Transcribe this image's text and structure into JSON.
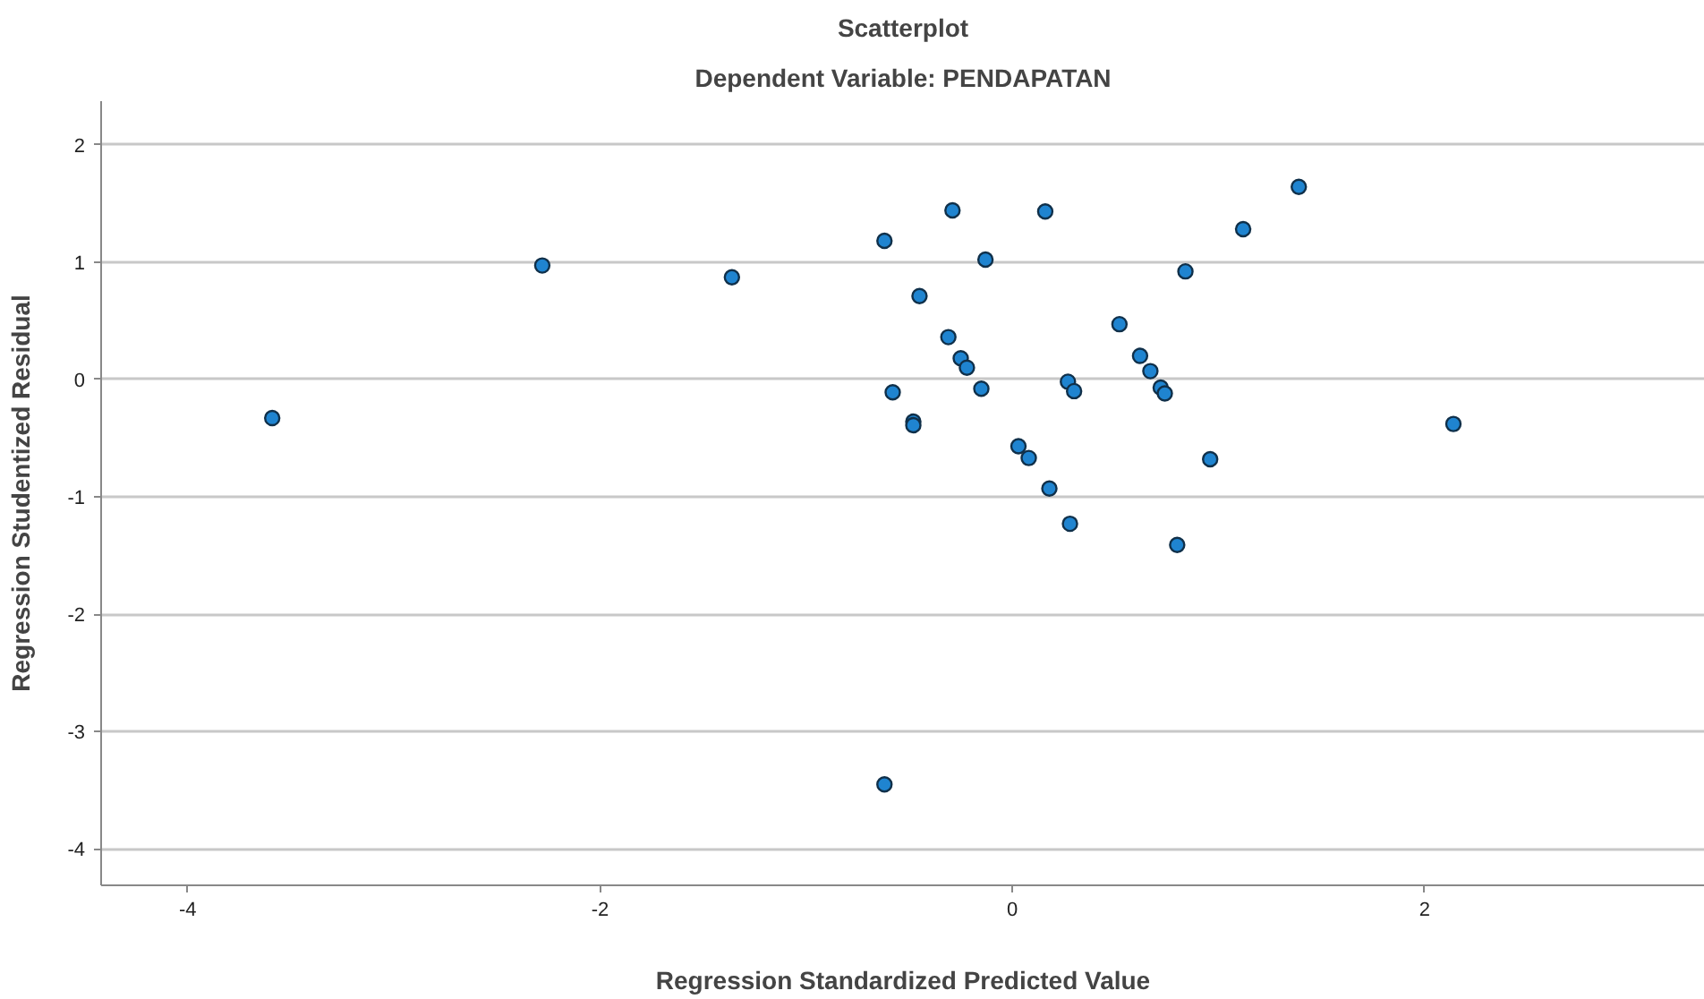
{
  "chart_data": {
    "type": "scatter",
    "title": "Scatterplot",
    "subtitle": "Dependent Variable: PENDAPATAN",
    "xlabel": "Regression Standardized Predicted Value",
    "ylabel": "Regression Studentized Residual",
    "xlim": [
      -4.42,
      3.36
    ],
    "ylim": [
      -4.31,
      2.37
    ],
    "xticks": [
      -4,
      -2,
      0,
      2
    ],
    "yticks": [
      -4,
      -3,
      -2,
      -1,
      0,
      1,
      2
    ],
    "grid": "y",
    "marker": "circle",
    "series": [
      {
        "color": "#1f84d0",
        "x": [
          -1.36,
          -0.62,
          -0.29,
          0.16,
          1.12,
          -0.13,
          0.84,
          -0.45,
          0.52,
          -0.31,
          -0.25,
          -0.22,
          0.62,
          0.67,
          -0.58,
          -0.15,
          0.27,
          0.3,
          0.72,
          0.74,
          -0.48,
          -0.48,
          0.03,
          0.08,
          0.96,
          0.18,
          0.28,
          0.8,
          -3.59,
          -2.28,
          2.14,
          -0.62,
          1.39
        ],
        "values": [
          0.87,
          1.18,
          1.44,
          1.43,
          1.28,
          1.02,
          0.92,
          0.71,
          0.47,
          0.36,
          0.18,
          0.1,
          0.2,
          0.07,
          -0.11,
          -0.08,
          -0.02,
          -0.1,
          -0.07,
          -0.12,
          -0.36,
          -0.39,
          -0.57,
          -0.67,
          -0.68,
          -0.93,
          -1.23,
          -1.41,
          -0.33,
          0.97,
          -0.38,
          -3.45,
          1.64
        ]
      }
    ]
  }
}
